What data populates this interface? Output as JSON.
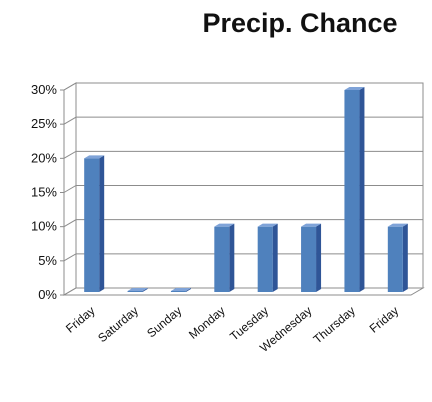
{
  "chart_data": {
    "type": "bar",
    "title": "Precip. Chance",
    "categories": [
      "Friday",
      "Saturday",
      "Sunday",
      "Monday",
      "Tuesday",
      "Wednesday",
      "Thursday",
      "Friday"
    ],
    "values": [
      20,
      0,
      0,
      10,
      10,
      10,
      30,
      10
    ],
    "y_ticks": [
      "0%",
      "5%",
      "10%",
      "15%",
      "20%",
      "25%",
      "30%"
    ],
    "ylim": [
      0,
      30
    ],
    "xlabel": "",
    "ylabel": "",
    "grid": true,
    "legend": "none",
    "bar_color": "#4f81bd"
  }
}
